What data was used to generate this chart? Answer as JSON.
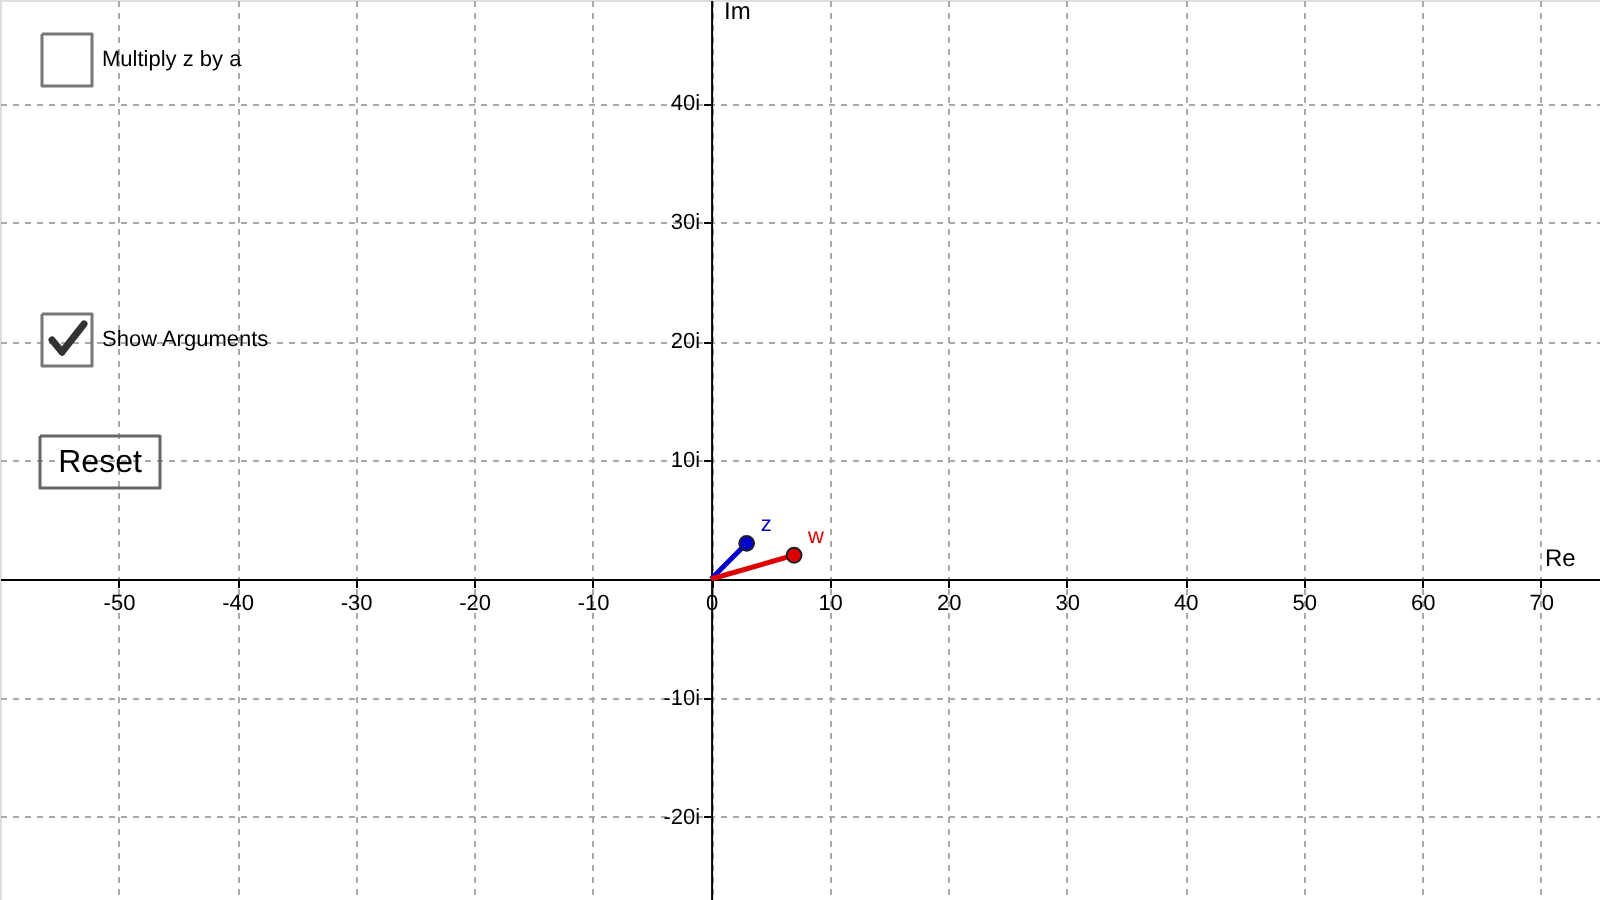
{
  "chart_data": {
    "type": "line",
    "xlabel": "Re",
    "ylabel": "Im",
    "xlim": [
      -60,
      75
    ],
    "ylim": [
      -27,
      48.7
    ],
    "xticks": [
      -50,
      -40,
      -30,
      -20,
      -10,
      0,
      10,
      20,
      30,
      40,
      50,
      60,
      70
    ],
    "yticks": [
      {
        "value": -20,
        "label": "-20i"
      },
      {
        "value": -10,
        "label": "-10i"
      },
      {
        "value": 10,
        "label": "10i"
      },
      {
        "value": 20,
        "label": "20i"
      },
      {
        "value": 30,
        "label": "30i"
      },
      {
        "value": 40,
        "label": "40i"
      }
    ],
    "grid": true,
    "marker": "circle",
    "line_style": "solid",
    "series": [
      {
        "name": "z",
        "color": "#0000cc",
        "x": [
          0,
          3
        ],
        "values": [
          0,
          3
        ]
      },
      {
        "name": "w",
        "color": "#dd0000",
        "x": [
          0,
          7
        ],
        "values": [
          0,
          2
        ]
      }
    ],
    "annotations": [
      "Multiply z by a",
      "Show Arguments",
      "Reset"
    ]
  }
}
